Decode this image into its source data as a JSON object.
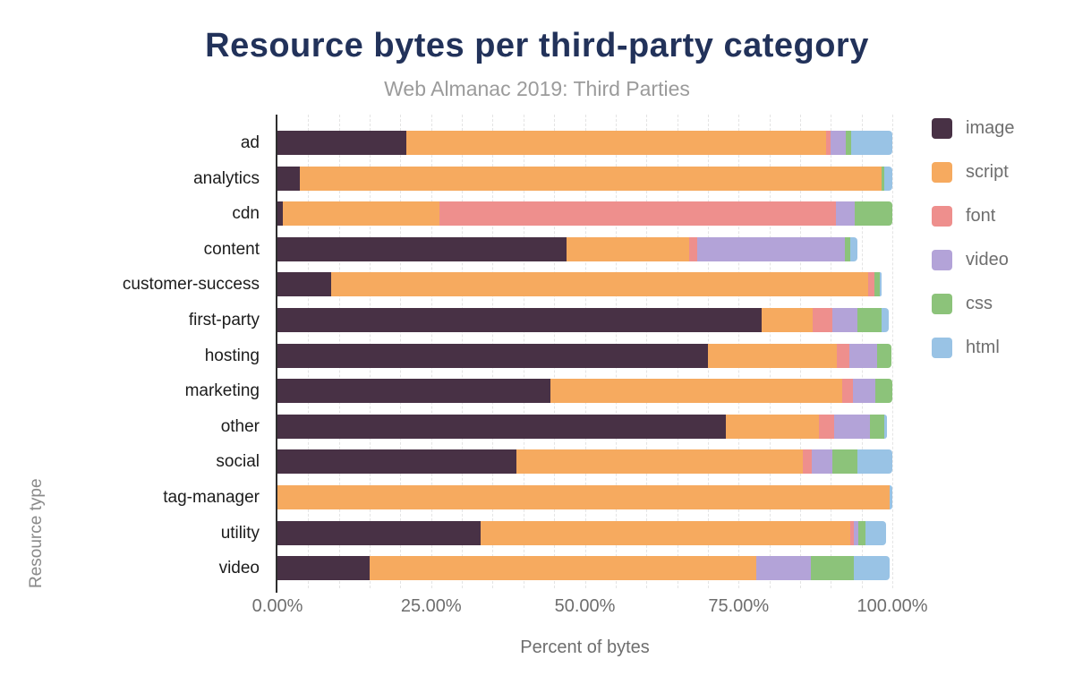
{
  "header": {
    "title": "Resource bytes per third-party category",
    "subtitle": "Web Almanac 2019: Third Parties"
  },
  "chart_data": {
    "type": "bar",
    "orientation": "horizontal",
    "stacked": true,
    "title": "Resource bytes per third-party category",
    "subtitle": "Web Almanac 2019: Third Parties",
    "xlabel": "Percent of bytes",
    "ylabel": "Resource type",
    "xlim": [
      0,
      100
    ],
    "x_ticks": [
      {
        "value": 0,
        "label": "0.00%"
      },
      {
        "value": 25,
        "label": "25.00%"
      },
      {
        "value": 50,
        "label": "50.00%"
      },
      {
        "value": 75,
        "label": "75.00%"
      },
      {
        "value": 100,
        "label": "100.00%"
      }
    ],
    "grid": "vertical dashed lines every 5%",
    "legend_position": "right",
    "categories": [
      "ad",
      "analytics",
      "cdn",
      "content",
      "customer-success",
      "first-party",
      "hosting",
      "marketing",
      "other",
      "social",
      "tag-manager",
      "utility",
      "video"
    ],
    "series": [
      {
        "name": "image",
        "color": "#483145",
        "values": [
          21.0,
          3.6,
          0.9,
          47.0,
          8.8,
          78.7,
          70.0,
          44.4,
          72.9,
          38.8,
          0,
          33.0,
          15.0
        ]
      },
      {
        "name": "script",
        "color": "#f6aa5f",
        "values": [
          68.2,
          94.7,
          25.4,
          20.0,
          87.3,
          8.4,
          21.0,
          47.5,
          15.1,
          46.7,
          99.5,
          60.1,
          62.9
        ]
      },
      {
        "name": "font",
        "color": "#ee8f8d",
        "values": [
          0.7,
          0,
          64.5,
          1.3,
          1.0,
          3.2,
          2.0,
          1.7,
          2.5,
          1.4,
          0,
          0.7,
          0
        ]
      },
      {
        "name": "video",
        "color": "#b3a3d8",
        "values": [
          2.6,
          0,
          3.1,
          24.0,
          0,
          4.1,
          4.6,
          3.7,
          5.9,
          3.3,
          0,
          0.7,
          8.9
        ]
      },
      {
        "name": "css",
        "color": "#8cc37a",
        "values": [
          0.8,
          0.4,
          6.1,
          0.8,
          0.8,
          3.9,
          2.3,
          2.7,
          2.3,
          4.2,
          0,
          1.2,
          7.0
        ]
      },
      {
        "name": "html",
        "color": "#99c3e5",
        "values": [
          6.7,
          1.3,
          0,
          1.2,
          0.4,
          1.1,
          0,
          0,
          0.4,
          5.6,
          0.5,
          3.3,
          5.7
        ]
      }
    ]
  },
  "style": {
    "title_color": "#22325a",
    "subtitle_color": "#9b9b9b",
    "axis_text_color": "#6e6e6e",
    "category_text_color": "#1c1c1c"
  }
}
